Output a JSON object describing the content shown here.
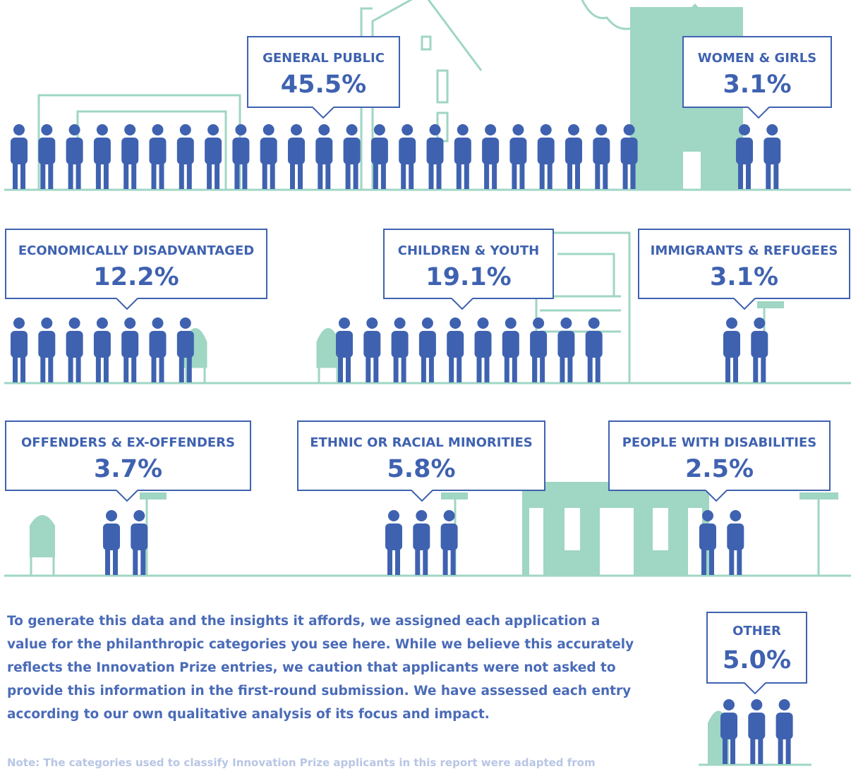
{
  "chart_data": {
    "type": "pictograph",
    "categories": [
      "GENERAL PUBLIC",
      "WOMEN & GIRLS",
      "ECONOMICALLY DISADVANTAGED",
      "CHILDREN & YOUTH",
      "IMMIGRANTS & REFUGEES",
      "OFFENDERS & EX-OFFENDERS",
      "ETHNIC OR RACIAL MINORITIES",
      "PEOPLE WITH DISABILITIES",
      "OTHER"
    ],
    "values": [
      45.5,
      3.1,
      12.2,
      19.1,
      3.1,
      3.7,
      5.8,
      2.5,
      5
    ],
    "value_labels": [
      "45.5%",
      "3.1%",
      "12.2%",
      "19.1%",
      "3.1%",
      "3.7%",
      "5.8%",
      "2.5%",
      "5.0%"
    ],
    "color": "#3f62b0"
  },
  "body_text": "To generate this data and the insights it affords, we assigned each application a value for the philanthropic categories you see here. While we believe this accurately reflects the Innovation Prize entries, we caution that applicants were not asked to provide this information in the first-round submission. We have assessed each entry according to our own qualitative analysis of its focus and impact.",
  "note": "Note: The categories used to classify Innovation Prize applicants in this report were adapted from"
}
